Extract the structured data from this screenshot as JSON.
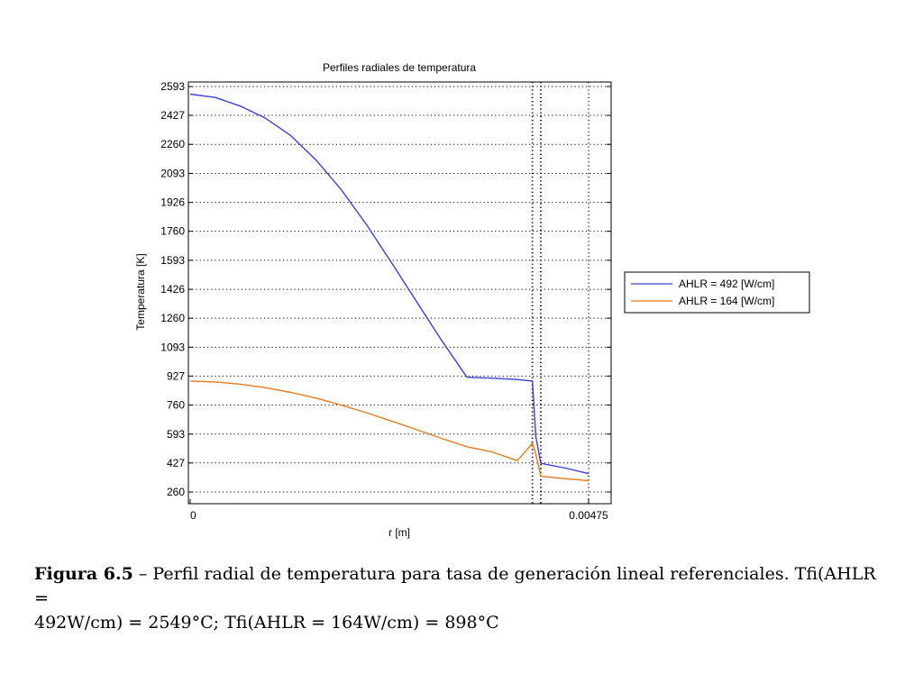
{
  "chart_data": {
    "type": "line",
    "title": "Perfiles radiales de temperatura",
    "xlabel": "r [m]",
    "ylabel": "Temperatura [K]",
    "xlim": [
      0,
      0.00475
    ],
    "ylim": [
      260,
      2593
    ],
    "xticks": [
      0,
      0.00475
    ],
    "xtick_labels": [
      "0",
      "0.00475"
    ],
    "yticks": [
      260,
      427,
      593,
      760,
      927,
      1093,
      1260,
      1426,
      1593,
      1760,
      1926,
      2093,
      2260,
      2427,
      2593
    ],
    "ytick_labels": [
      "260",
      "427",
      "593",
      "760",
      "927",
      "1093",
      "1260",
      "1426",
      "1593",
      "1760",
      "1926",
      "2093",
      "2260",
      "2427",
      "2593"
    ],
    "vertical_lines_x": [
      0.00408,
      0.00418,
      0.00475
    ],
    "grid": true,
    "grid_style": "dotted",
    "legend_position": "outside-right",
    "series": [
      {
        "name": "AHLR = 492 [W/cm]",
        "color": "#3a3fd6",
        "x": [
          0,
          0.0003,
          0.0006,
          0.0009,
          0.0012,
          0.0015,
          0.0018,
          0.0021,
          0.0024,
          0.0027,
          0.003,
          0.0033,
          0.0036,
          0.0039,
          0.00408,
          0.00412,
          0.00418,
          0.0045,
          0.00475
        ],
        "y": [
          2549,
          2530,
          2480,
          2410,
          2310,
          2170,
          2000,
          1800,
          1580,
          1355,
          1130,
          920,
          915,
          907,
          898,
          580,
          425,
          395,
          365
        ]
      },
      {
        "name": "AHLR = 164 [W/cm]",
        "color": "#e87a1e",
        "x": [
          0,
          0.0003,
          0.0006,
          0.0009,
          0.0012,
          0.0015,
          0.0018,
          0.0021,
          0.0024,
          0.0027,
          0.003,
          0.0033,
          0.0036,
          0.0039,
          0.00408,
          0.00412,
          0.00418,
          0.0045,
          0.00475
        ],
        "y": [
          898,
          893,
          880,
          860,
          833,
          800,
          760,
          716,
          668,
          618,
          568,
          520,
          490,
          440,
          540,
          480,
          350,
          335,
          325
        ]
      }
    ]
  },
  "caption": {
    "figure_label": "Figura 6.5",
    "line1": " – Perfil radial de temperatura para tasa de generación lineal referenciales. Tfi(AHLR =",
    "line2": "492W/cm) = 2549°C; Tfi(AHLR = 164W/cm) = 898°C"
  }
}
